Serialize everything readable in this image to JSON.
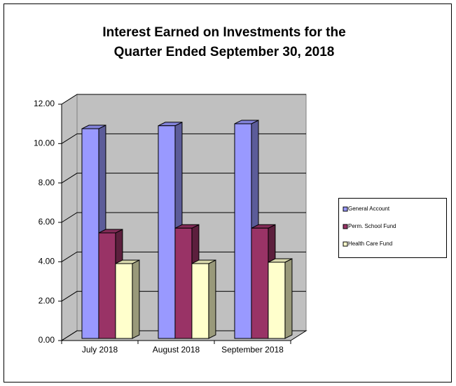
{
  "chart_data": {
    "type": "bar3d",
    "title": [
      "Interest Earned on Investments for the",
      "Quarter Ended September 30, 2018"
    ],
    "categories": [
      "July 2018",
      "August 2018",
      "September 2018"
    ],
    "series": [
      {
        "name": "General Account",
        "color": "#9999ff",
        "values": [
          10.65,
          10.8,
          10.9
        ]
      },
      {
        "name": "Perm. School Fund",
        "color": "#993366",
        "values": [
          5.36,
          5.6,
          5.6
        ]
      },
      {
        "name": "Health Care Fund",
        "color": "#ffffcc",
        "values": [
          3.8,
          3.8,
          3.87
        ]
      }
    ],
    "ylim": [
      0,
      12
    ],
    "yticks": [
      {
        "value": 0,
        "label": "0.00"
      },
      {
        "value": 2,
        "label": "2.00"
      },
      {
        "value": 4,
        "label": "4.00"
      },
      {
        "value": 6,
        "label": "6.00"
      },
      {
        "value": 8,
        "label": "8.00"
      },
      {
        "value": 10,
        "label": "10.00"
      },
      {
        "value": 12,
        "label": "12.00"
      }
    ],
    "grid": true,
    "legend": "right"
  }
}
